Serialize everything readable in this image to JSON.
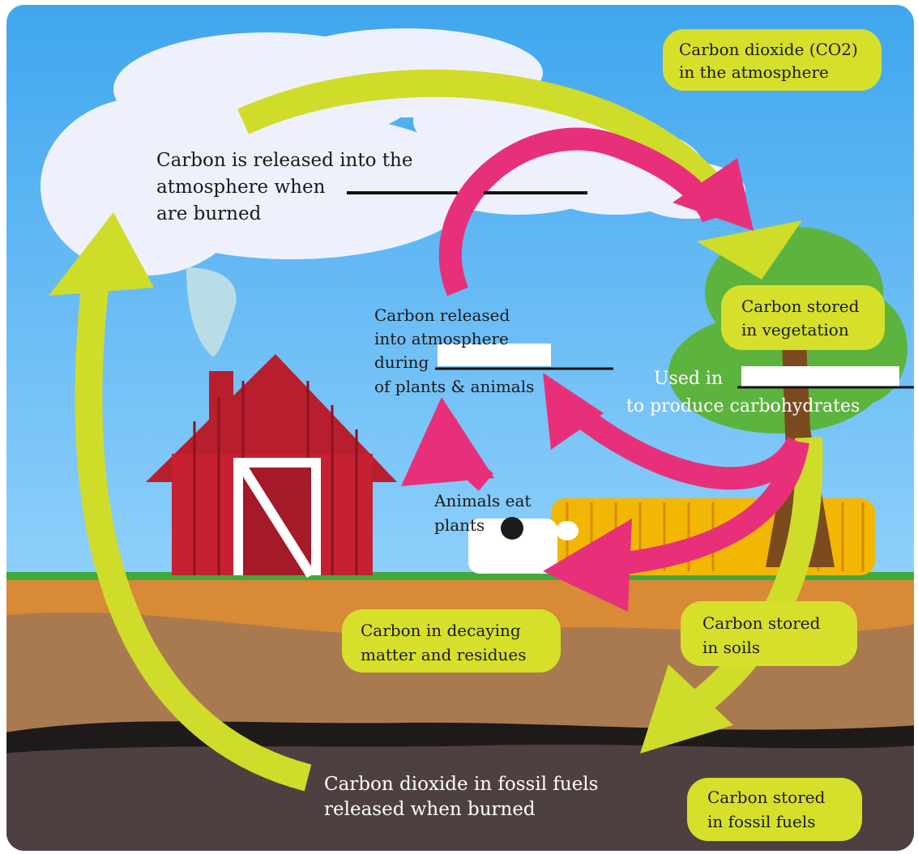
{
  "labels": [
    {
      "lines": [
        "Carbon dioxide (CO2)",
        "in the atmosphere"
      ]
    },
    {
      "lines": [
        "Carbon is released into the",
        "atmosphere when",
        "are burned"
      ]
    },
    {
      "lines": [
        "Carbon released",
        "into atmosphere",
        "during",
        "of plants & animals"
      ]
    },
    {
      "lines": [
        "Carbon stored",
        "in vegetation"
      ]
    },
    {
      "lines": [
        "Used in",
        "to produce carbohydrates"
      ]
    },
    {
      "lines": [
        "Animals eat",
        "plants"
      ]
    },
    {
      "lines": [
        "Carbon in decaying",
        "matter and residues"
      ]
    },
    {
      "lines": [
        "Carbon stored",
        "in soils"
      ]
    },
    {
      "lines": [
        "Carbon dioxide in fossil fuels",
        "released when burned"
      ]
    },
    {
      "lines": [
        "Carbon stored",
        "in fossil fuels"
      ]
    }
  ]
}
